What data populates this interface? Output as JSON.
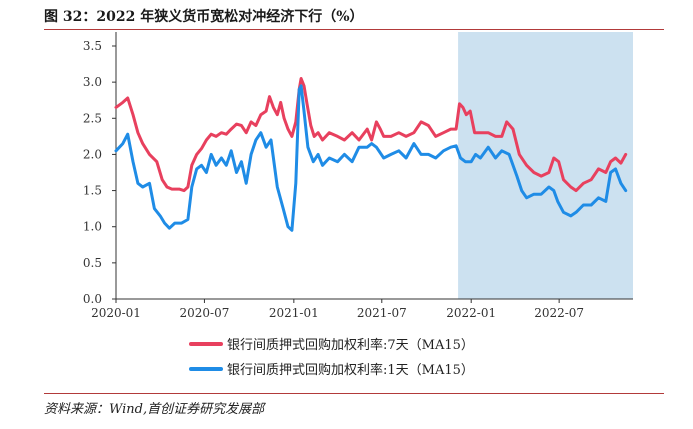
{
  "figure": {
    "title": "图 32：2022 年狭义货币宽松对冲经济下行（%）",
    "source": "资料来源：Wind,首创证券研究发展部"
  },
  "chart_data": {
    "type": "line",
    "title": "",
    "xlabel": "",
    "ylabel": "",
    "ylim": [
      0,
      3.5
    ],
    "yticks": [
      "0.0",
      "0.5",
      "1.0",
      "1.5",
      "2.0",
      "2.5",
      "3.0",
      "3.5"
    ],
    "xticks": [
      "2020-01",
      "2020-07",
      "2021-01",
      "2021-07",
      "2022-01",
      "2022-07"
    ],
    "x_range": [
      "2020-01",
      "2022-11"
    ],
    "shaded_region": [
      "2021-12",
      "2022-11"
    ],
    "shaded_color": "#cce1f0",
    "legend_position": "bottom",
    "series": [
      {
        "name": "银行间质押式回购加权利率:7天（MA15）",
        "color": "#e8405e",
        "points": [
          [
            "2020-01-01",
            2.65
          ],
          [
            "2020-01-15",
            2.72
          ],
          [
            "2020-01-25",
            2.78
          ],
          [
            "2020-02-05",
            2.55
          ],
          [
            "2020-02-15",
            2.3
          ],
          [
            "2020-02-25",
            2.15
          ],
          [
            "2020-03-10",
            2.0
          ],
          [
            "2020-03-25",
            1.9
          ],
          [
            "2020-04-05",
            1.65
          ],
          [
            "2020-04-15",
            1.55
          ],
          [
            "2020-04-25",
            1.52
          ],
          [
            "2020-05-10",
            1.52
          ],
          [
            "2020-05-20",
            1.5
          ],
          [
            "2020-05-28",
            1.55
          ],
          [
            "2020-06-05",
            1.85
          ],
          [
            "2020-06-15",
            2.0
          ],
          [
            "2020-06-25",
            2.08
          ],
          [
            "2020-07-05",
            2.2
          ],
          [
            "2020-07-15",
            2.28
          ],
          [
            "2020-07-25",
            2.25
          ],
          [
            "2020-08-05",
            2.3
          ],
          [
            "2020-08-15",
            2.28
          ],
          [
            "2020-08-25",
            2.35
          ],
          [
            "2020-09-05",
            2.42
          ],
          [
            "2020-09-15",
            2.4
          ],
          [
            "2020-09-25",
            2.3
          ],
          [
            "2020-10-05",
            2.45
          ],
          [
            "2020-10-15",
            2.4
          ],
          [
            "2020-10-25",
            2.55
          ],
          [
            "2020-11-05",
            2.6
          ],
          [
            "2020-11-12",
            2.8
          ],
          [
            "2020-11-20",
            2.65
          ],
          [
            "2020-11-28",
            2.55
          ],
          [
            "2020-12-05",
            2.72
          ],
          [
            "2020-12-12",
            2.5
          ],
          [
            "2020-12-20",
            2.35
          ],
          [
            "2020-12-28",
            2.25
          ],
          [
            "2021-01-05",
            2.45
          ],
          [
            "2021-01-12",
            2.9
          ],
          [
            "2021-01-16",
            3.05
          ],
          [
            "2021-01-22",
            2.95
          ],
          [
            "2021-01-28",
            2.7
          ],
          [
            "2021-02-05",
            2.4
          ],
          [
            "2021-02-12",
            2.25
          ],
          [
            "2021-02-20",
            2.3
          ],
          [
            "2021-03-01",
            2.2
          ],
          [
            "2021-03-15",
            2.3
          ],
          [
            "2021-04-01",
            2.25
          ],
          [
            "2021-04-15",
            2.2
          ],
          [
            "2021-05-01",
            2.3
          ],
          [
            "2021-05-15",
            2.2
          ],
          [
            "2021-06-01",
            2.35
          ],
          [
            "2021-06-10",
            2.2
          ],
          [
            "2021-06-20",
            2.45
          ],
          [
            "2021-06-28",
            2.35
          ],
          [
            "2021-07-05",
            2.25
          ],
          [
            "2021-07-20",
            2.25
          ],
          [
            "2021-08-05",
            2.3
          ],
          [
            "2021-08-20",
            2.25
          ],
          [
            "2021-09-05",
            2.3
          ],
          [
            "2021-09-20",
            2.45
          ],
          [
            "2021-10-05",
            2.4
          ],
          [
            "2021-10-20",
            2.25
          ],
          [
            "2021-11-05",
            2.3
          ],
          [
            "2021-11-20",
            2.35
          ],
          [
            "2021-12-01",
            2.35
          ],
          [
            "2021-12-08",
            2.7
          ],
          [
            "2021-12-15",
            2.65
          ],
          [
            "2021-12-22",
            2.55
          ],
          [
            "2021-12-30",
            2.6
          ],
          [
            "2022-01-08",
            2.3
          ],
          [
            "2022-01-20",
            2.3
          ],
          [
            "2022-02-05",
            2.3
          ],
          [
            "2022-02-20",
            2.25
          ],
          [
            "2022-03-05",
            2.25
          ],
          [
            "2022-03-15",
            2.45
          ],
          [
            "2022-03-28",
            2.35
          ],
          [
            "2022-04-10",
            2.0
          ],
          [
            "2022-04-25",
            1.85
          ],
          [
            "2022-05-10",
            1.75
          ],
          [
            "2022-05-25",
            1.7
          ],
          [
            "2022-06-10",
            1.75
          ],
          [
            "2022-06-20",
            1.95
          ],
          [
            "2022-06-30",
            1.9
          ],
          [
            "2022-07-10",
            1.65
          ],
          [
            "2022-07-25",
            1.55
          ],
          [
            "2022-08-05",
            1.5
          ],
          [
            "2022-08-20",
            1.6
          ],
          [
            "2022-09-05",
            1.65
          ],
          [
            "2022-09-20",
            1.8
          ],
          [
            "2022-10-05",
            1.75
          ],
          [
            "2022-10-15",
            1.9
          ],
          [
            "2022-10-25",
            1.95
          ],
          [
            "2022-11-05",
            1.88
          ],
          [
            "2022-11-15",
            2.0
          ]
        ]
      },
      {
        "name": "银行间质押式回购加权利率:1天（MA15）",
        "color": "#1f8ce6",
        "points": [
          [
            "2020-01-01",
            2.05
          ],
          [
            "2020-01-15",
            2.15
          ],
          [
            "2020-01-25",
            2.28
          ],
          [
            "2020-02-05",
            1.9
          ],
          [
            "2020-02-15",
            1.6
          ],
          [
            "2020-02-25",
            1.55
          ],
          [
            "2020-03-10",
            1.6
          ],
          [
            "2020-03-20",
            1.25
          ],
          [
            "2020-04-01",
            1.15
          ],
          [
            "2020-04-10",
            1.05
          ],
          [
            "2020-04-20",
            0.98
          ],
          [
            "2020-05-01",
            1.05
          ],
          [
            "2020-05-15",
            1.05
          ],
          [
            "2020-05-28",
            1.1
          ],
          [
            "2020-06-05",
            1.55
          ],
          [
            "2020-06-15",
            1.8
          ],
          [
            "2020-06-25",
            1.85
          ],
          [
            "2020-07-05",
            1.75
          ],
          [
            "2020-07-15",
            2.0
          ],
          [
            "2020-07-25",
            1.85
          ],
          [
            "2020-08-05",
            1.95
          ],
          [
            "2020-08-15",
            1.85
          ],
          [
            "2020-08-25",
            2.05
          ],
          [
            "2020-09-05",
            1.75
          ],
          [
            "2020-09-15",
            1.9
          ],
          [
            "2020-09-25",
            1.6
          ],
          [
            "2020-10-05",
            2.0
          ],
          [
            "2020-10-15",
            2.2
          ],
          [
            "2020-10-25",
            2.3
          ],
          [
            "2020-11-05",
            2.1
          ],
          [
            "2020-11-15",
            2.2
          ],
          [
            "2020-11-28",
            1.55
          ],
          [
            "2020-12-10",
            1.25
          ],
          [
            "2020-12-20",
            1.0
          ],
          [
            "2020-12-28",
            0.95
          ],
          [
            "2021-01-05",
            1.6
          ],
          [
            "2021-01-12",
            2.9
          ],
          [
            "2021-01-16",
            2.95
          ],
          [
            "2021-01-22",
            2.6
          ],
          [
            "2021-01-30",
            2.1
          ],
          [
            "2021-02-10",
            1.9
          ],
          [
            "2021-02-20",
            2.0
          ],
          [
            "2021-03-01",
            1.85
          ],
          [
            "2021-03-15",
            1.95
          ],
          [
            "2021-04-01",
            1.9
          ],
          [
            "2021-04-15",
            2.0
          ],
          [
            "2021-05-01",
            1.9
          ],
          [
            "2021-05-15",
            2.1
          ],
          [
            "2021-06-01",
            2.1
          ],
          [
            "2021-06-10",
            2.15
          ],
          [
            "2021-06-20",
            2.1
          ],
          [
            "2021-07-05",
            1.95
          ],
          [
            "2021-07-20",
            2.0
          ],
          [
            "2021-08-05",
            2.05
          ],
          [
            "2021-08-20",
            1.95
          ],
          [
            "2021-09-05",
            2.15
          ],
          [
            "2021-09-20",
            2.0
          ],
          [
            "2021-10-05",
            2.0
          ],
          [
            "2021-10-20",
            1.95
          ],
          [
            "2021-11-05",
            2.05
          ],
          [
            "2021-11-20",
            2.1
          ],
          [
            "2021-12-01",
            2.12
          ],
          [
            "2021-12-10",
            1.95
          ],
          [
            "2021-12-20",
            1.9
          ],
          [
            "2022-01-01",
            1.9
          ],
          [
            "2022-01-10",
            2.0
          ],
          [
            "2022-01-20",
            1.95
          ],
          [
            "2022-02-05",
            2.1
          ],
          [
            "2022-02-20",
            1.95
          ],
          [
            "2022-03-05",
            2.05
          ],
          [
            "2022-03-20",
            2.0
          ],
          [
            "2022-04-05",
            1.7
          ],
          [
            "2022-04-15",
            1.5
          ],
          [
            "2022-04-25",
            1.4
          ],
          [
            "2022-05-10",
            1.45
          ],
          [
            "2022-05-25",
            1.45
          ],
          [
            "2022-06-10",
            1.55
          ],
          [
            "2022-06-20",
            1.5
          ],
          [
            "2022-06-28",
            1.35
          ],
          [
            "2022-07-10",
            1.2
          ],
          [
            "2022-07-25",
            1.15
          ],
          [
            "2022-08-05",
            1.2
          ],
          [
            "2022-08-20",
            1.3
          ],
          [
            "2022-09-05",
            1.3
          ],
          [
            "2022-09-20",
            1.4
          ],
          [
            "2022-10-05",
            1.35
          ],
          [
            "2022-10-15",
            1.75
          ],
          [
            "2022-10-25",
            1.8
          ],
          [
            "2022-11-05",
            1.6
          ],
          [
            "2022-11-15",
            1.5
          ]
        ]
      }
    ]
  }
}
